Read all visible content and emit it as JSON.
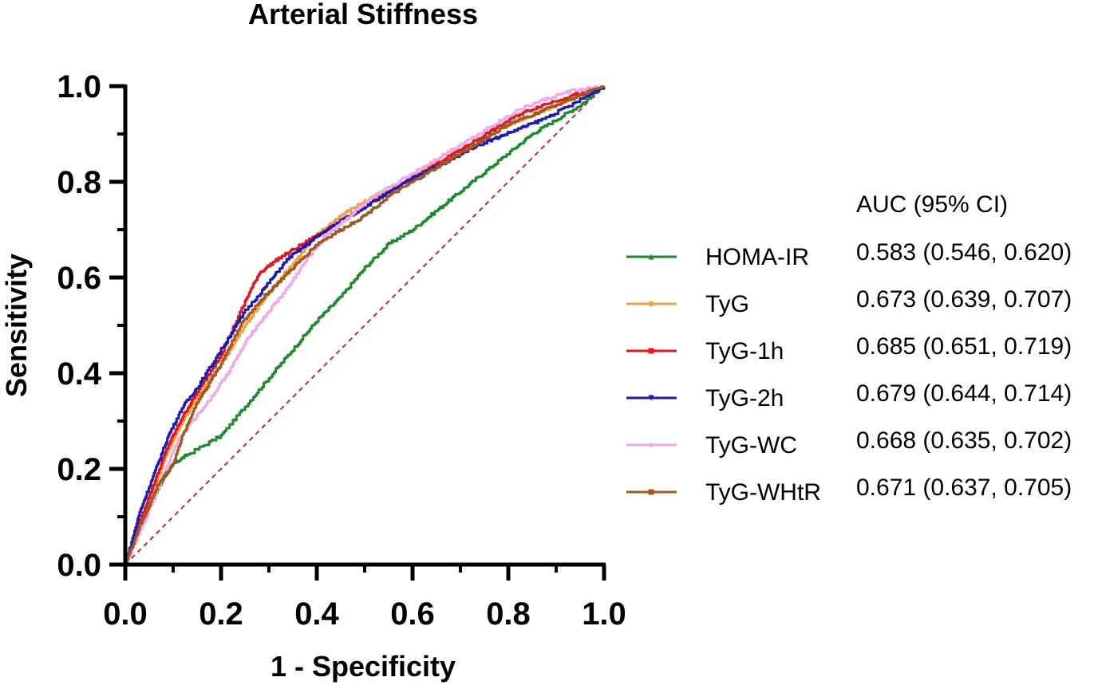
{
  "chart_data": {
    "type": "line",
    "title": "Arterial Stiffness",
    "xlabel": "1 - Specificity",
    "ylabel": "Sensitivity",
    "xlim": [
      0,
      1
    ],
    "ylim": [
      0,
      1
    ],
    "x_ticks": [
      "0.0",
      "0.2",
      "0.4",
      "0.6",
      "0.8",
      "1.0"
    ],
    "y_ticks": [
      "0.0",
      "0.2",
      "0.4",
      "0.6",
      "0.8",
      "1.0"
    ],
    "grid": false,
    "legend_position": "right",
    "legend_header": "AUC (95% CI)",
    "reference_line": {
      "name": "reference",
      "color": "#e02020",
      "style": "dashed",
      "x": [
        0,
        1
      ],
      "y": [
        0,
        1
      ]
    },
    "series": [
      {
        "name": "HOMA-IR",
        "auc_text": "0.583 (0.546, 0.620)",
        "color": "#1e8a2e",
        "marker": "triangle-up",
        "x": [
          0,
          0.02,
          0.05,
          0.08,
          0.1,
          0.13,
          0.2,
          0.25,
          0.3,
          0.35,
          0.4,
          0.45,
          0.5,
          0.55,
          0.6,
          0.65,
          0.7,
          0.75,
          0.8,
          0.85,
          0.9,
          0.95,
          1.0
        ],
        "y": [
          0,
          0.06,
          0.12,
          0.18,
          0.21,
          0.23,
          0.27,
          0.33,
          0.39,
          0.45,
          0.51,
          0.56,
          0.62,
          0.67,
          0.7,
          0.74,
          0.78,
          0.82,
          0.86,
          0.9,
          0.93,
          0.96,
          1.0
        ]
      },
      {
        "name": "TyG",
        "auc_text": "0.673 (0.639, 0.707)",
        "color": "#f5a040",
        "marker": "circle",
        "x": [
          0,
          0.03,
          0.06,
          0.09,
          0.12,
          0.15,
          0.2,
          0.25,
          0.3,
          0.35,
          0.4,
          0.45,
          0.5,
          0.55,
          0.6,
          0.65,
          0.7,
          0.75,
          0.8,
          0.85,
          0.9,
          0.95,
          1.0
        ],
        "y": [
          0,
          0.08,
          0.16,
          0.24,
          0.3,
          0.35,
          0.42,
          0.5,
          0.57,
          0.63,
          0.69,
          0.73,
          0.76,
          0.78,
          0.81,
          0.84,
          0.86,
          0.89,
          0.92,
          0.94,
          0.96,
          0.98,
          1.0
        ]
      },
      {
        "name": "TyG-1h",
        "auc_text": "0.685 (0.651, 0.719)",
        "color": "#e8141c",
        "marker": "square",
        "x": [
          0,
          0.03,
          0.06,
          0.09,
          0.12,
          0.15,
          0.2,
          0.25,
          0.28,
          0.32,
          0.37,
          0.42,
          0.47,
          0.52,
          0.57,
          0.62,
          0.67,
          0.72,
          0.77,
          0.82,
          0.87,
          0.93,
          1.0
        ],
        "y": [
          0,
          0.09,
          0.17,
          0.25,
          0.31,
          0.36,
          0.44,
          0.55,
          0.61,
          0.64,
          0.67,
          0.7,
          0.73,
          0.76,
          0.79,
          0.82,
          0.85,
          0.88,
          0.91,
          0.94,
          0.96,
          0.98,
          1.0
        ]
      },
      {
        "name": "TyG-2h",
        "auc_text": "0.679 (0.644, 0.714)",
        "color": "#1a1ab8",
        "marker": "triangle-down",
        "x": [
          0,
          0.03,
          0.06,
          0.09,
          0.12,
          0.15,
          0.2,
          0.25,
          0.3,
          0.34,
          0.38,
          0.42,
          0.47,
          0.52,
          0.57,
          0.62,
          0.67,
          0.72,
          0.77,
          0.82,
          0.87,
          0.93,
          1.0
        ],
        "y": [
          0,
          0.11,
          0.19,
          0.27,
          0.33,
          0.37,
          0.45,
          0.53,
          0.59,
          0.64,
          0.67,
          0.7,
          0.73,
          0.76,
          0.79,
          0.82,
          0.84,
          0.87,
          0.89,
          0.91,
          0.93,
          0.96,
          1.0
        ]
      },
      {
        "name": "TyG-WC",
        "auc_text": "0.668 (0.635, 0.702)",
        "color": "#f0a8e8",
        "marker": "diamond",
        "x": [
          0,
          0.04,
          0.08,
          0.11,
          0.14,
          0.18,
          0.22,
          0.26,
          0.3,
          0.34,
          0.38,
          0.42,
          0.47,
          0.52,
          0.57,
          0.62,
          0.67,
          0.72,
          0.77,
          0.82,
          0.87,
          0.93,
          1.0
        ],
        "y": [
          0,
          0.09,
          0.19,
          0.26,
          0.3,
          0.35,
          0.41,
          0.48,
          0.53,
          0.58,
          0.64,
          0.69,
          0.73,
          0.77,
          0.8,
          0.83,
          0.86,
          0.89,
          0.92,
          0.95,
          0.97,
          0.99,
          1.0
        ]
      },
      {
        "name": "TyG-WHtR",
        "auc_text": "0.671 (0.637, 0.705)",
        "color": "#a0581e",
        "marker": "square",
        "x": [
          0,
          0.03,
          0.07,
          0.1,
          0.12,
          0.15,
          0.2,
          0.24,
          0.28,
          0.32,
          0.36,
          0.4,
          0.45,
          0.5,
          0.55,
          0.6,
          0.65,
          0.7,
          0.75,
          0.8,
          0.85,
          0.92,
          1.0
        ],
        "y": [
          0,
          0.08,
          0.17,
          0.21,
          0.27,
          0.34,
          0.42,
          0.5,
          0.55,
          0.59,
          0.63,
          0.67,
          0.7,
          0.73,
          0.77,
          0.8,
          0.83,
          0.86,
          0.89,
          0.92,
          0.94,
          0.97,
          1.0
        ]
      }
    ]
  }
}
